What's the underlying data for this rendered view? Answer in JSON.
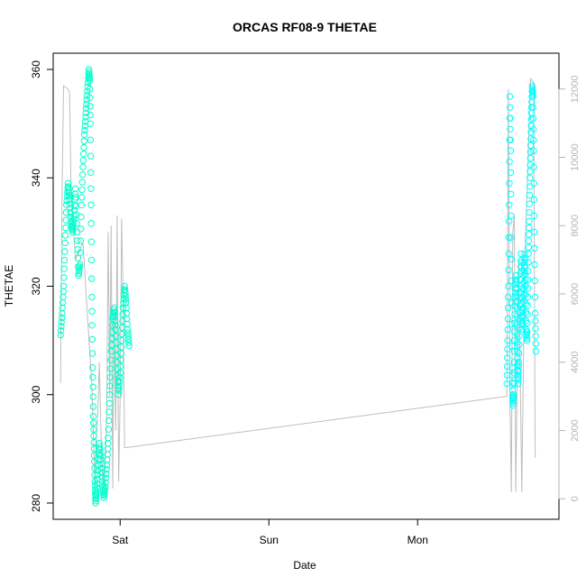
{
  "chart_data": {
    "type": "scatter",
    "title": "ORCAS RF08-9 THETAE",
    "xlabel": "Date",
    "ylabel": "THETAE",
    "x_tick_labels": [
      "Sat",
      "Sun",
      "Mon"
    ],
    "x_ticks_days": [
      1.0,
      2.0,
      3.0
    ],
    "xlim_days": [
      0.55,
      3.95
    ],
    "ylim": [
      277,
      363
    ],
    "y_ticks": [
      280,
      300,
      320,
      340,
      360
    ],
    "y2_label": "",
    "y2_ticks": [
      0,
      2000,
      4000,
      6000,
      8000,
      10000,
      12000
    ],
    "y2lim": [
      -600,
      13050
    ],
    "colors": {
      "points": "#00ffcc",
      "points_late": "#00ffff",
      "altitude_line": "#bebebe",
      "axis": "#000000",
      "right_axis": "#b3b3b3"
    },
    "series": [
      {
        "type": "scatter",
        "marker": "open-circle",
        "segments": [
          [
            [
              0.6,
              311
            ],
            [
              0.61,
              315
            ],
            [
              0.62,
              320
            ],
            [
              0.63,
              328
            ],
            [
              0.64,
              335
            ],
            [
              0.65,
              339
            ],
            [
              0.66,
              336
            ],
            [
              0.67,
              332
            ],
            [
              0.68,
              330
            ],
            [
              0.69,
              333
            ],
            [
              0.7,
              338
            ],
            [
              0.71,
              330
            ],
            [
              0.72,
              322
            ],
            [
              0.73,
              324
            ],
            [
              0.74,
              335
            ],
            [
              0.75,
              342
            ],
            [
              0.76,
              348
            ],
            [
              0.77,
              352
            ],
            [
              0.78,
              356
            ],
            [
              0.79,
              360
            ],
            [
              0.795,
              358
            ],
            [
              0.8,
              350
            ],
            [
              0.805,
              335
            ],
            [
              0.81,
              318
            ],
            [
              0.815,
              305
            ],
            [
              0.82,
              296
            ],
            [
              0.825,
              290
            ],
            [
              0.83,
              284
            ],
            [
              0.835,
              280
            ],
            [
              0.84,
              282
            ],
            [
              0.85,
              286
            ],
            [
              0.86,
              291
            ],
            [
              0.87,
              288
            ],
            [
              0.88,
              284
            ],
            [
              0.89,
              281
            ],
            [
              0.9,
              283
            ],
            [
              0.91,
              287
            ],
            [
              0.92,
              292
            ],
            [
              0.93,
              300
            ],
            [
              0.94,
              308
            ],
            [
              0.95,
              314
            ],
            [
              0.96,
              316
            ],
            [
              0.97,
              312
            ],
            [
              0.98,
              306
            ],
            [
              0.99,
              300
            ],
            [
              1.0,
              304
            ],
            [
              1.01,
              310
            ],
            [
              1.02,
              316
            ],
            [
              1.03,
              320
            ],
            [
              1.04,
              317
            ],
            [
              1.05,
              312
            ],
            [
              1.06,
              309
            ]
          ]
        ]
      },
      {
        "type": "scatter",
        "marker": "open-circle",
        "segments": [
          [
            [
              3.6,
              302
            ],
            [
              3.605,
              310
            ],
            [
              3.61,
              320
            ],
            [
              3.615,
              335
            ],
            [
              3.62,
              355
            ],
            [
              3.625,
              345
            ],
            [
              3.63,
              325
            ],
            [
              3.635,
              305
            ],
            [
              3.64,
              298
            ],
            [
              3.645,
              300
            ],
            [
              3.65,
              310
            ],
            [
              3.655,
              318
            ],
            [
              3.66,
              322
            ],
            [
              3.665,
              316
            ],
            [
              3.67,
              308
            ],
            [
              3.675,
              302
            ],
            [
              3.68,
              306
            ],
            [
              3.685,
              314
            ],
            [
              3.69,
              320
            ],
            [
              3.695,
              326
            ],
            [
              3.7,
              318
            ],
            [
              3.705,
              312
            ],
            [
              3.71,
              316
            ],
            [
              3.715,
              322
            ],
            [
              3.72,
              326
            ],
            [
              3.725,
              320
            ],
            [
              3.73,
              312
            ],
            [
              3.735,
              310
            ],
            [
              3.74,
              318
            ],
            [
              3.745,
              326
            ],
            [
              3.75,
              332
            ],
            [
              3.755,
              340
            ],
            [
              3.76,
              346
            ],
            [
              3.765,
              352
            ],
            [
              3.77,
              357
            ],
            [
              3.775,
              355
            ],
            [
              3.78,
              345
            ],
            [
              3.785,
              330
            ],
            [
              3.79,
              315
            ],
            [
              3.795,
              308
            ]
          ]
        ]
      },
      {
        "type": "line",
        "axis": "right",
        "segments": [
          [
            [
              0.6,
              3400
            ],
            [
              0.61,
              9000
            ],
            [
              0.62,
              12100
            ],
            [
              0.65,
              12000
            ],
            [
              0.66,
              11900
            ],
            [
              0.67,
              9000
            ],
            [
              0.7,
              7000
            ],
            [
              0.75,
              7500
            ],
            [
              0.8,
              4000
            ],
            [
              0.81,
              3300
            ],
            [
              0.82,
              2000
            ],
            [
              0.83,
              400
            ],
            [
              0.84,
              1800
            ],
            [
              0.85,
              2500
            ],
            [
              0.86,
              4000
            ],
            [
              0.87,
              2200
            ],
            [
              0.88,
              800
            ],
            [
              0.89,
              400
            ],
            [
              0.9,
              1000
            ],
            [
              0.91,
              2500
            ],
            [
              0.92,
              7800
            ],
            [
              0.93,
              3000
            ],
            [
              0.94,
              8000
            ],
            [
              0.95,
              300
            ],
            [
              0.96,
              5500
            ],
            [
              0.97,
              2000
            ],
            [
              0.98,
              8300
            ],
            [
              0.99,
              500
            ],
            [
              1.0,
              3000
            ],
            [
              1.01,
              8200
            ],
            [
              1.02,
              6000
            ],
            [
              1.03,
              1500
            ],
            [
              1.04,
              1500
            ],
            [
              3.6,
              3000
            ],
            [
              3.61,
              12000
            ],
            [
              3.62,
              3000
            ],
            [
              3.63,
              200
            ],
            [
              3.64,
              7800
            ],
            [
              3.65,
              8300
            ],
            [
              3.66,
              200
            ],
            [
              3.68,
              7000
            ],
            [
              3.7,
              200
            ],
            [
              3.72,
              7000
            ],
            [
              3.74,
              9600
            ],
            [
              3.76,
              12300
            ],
            [
              3.78,
              12200
            ],
            [
              3.79,
              1200
            ]
          ]
        ]
      }
    ]
  }
}
